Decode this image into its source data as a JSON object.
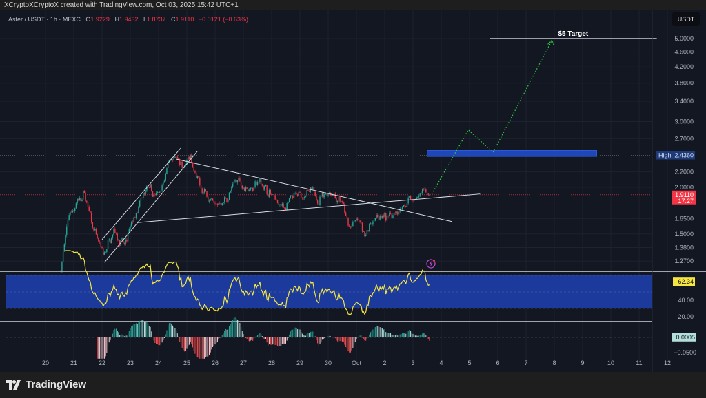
{
  "header": {
    "credit": "XCryptoXCryptoX created with TradingView.com, Oct 03, 2025 15:42 UTC+1"
  },
  "legend": {
    "symbol": "Aster / USDT · 1h · MEXC",
    "open_label": "O",
    "open": "1.9229",
    "high_label": "H",
    "high": "1.9432",
    "low_label": "L",
    "low": "1.8737",
    "close_label": "C",
    "close": "1.9110",
    "change": "−0.0121 (−0.63%)"
  },
  "price_axis": {
    "currency": "USDT",
    "ticks": [
      "5.0000",
      "4.6000",
      "4.2000",
      "3.8000",
      "3.4000",
      "3.0000",
      "2.7000",
      "2.2000",
      "2.0000",
      "1.6500",
      "1.5000",
      "1.3800",
      "1.2700"
    ],
    "high_label": "High",
    "high_value": "2.4360",
    "last_price": "1.9110",
    "countdown": "17:27"
  },
  "rsi_axis": {
    "ticks": [
      "40.00",
      "20.00"
    ],
    "current": "62.34"
  },
  "macd_axis": {
    "ticks": [
      "−0.0500"
    ],
    "current": "0.0005"
  },
  "time_axis": {
    "ticks": [
      "20",
      "21",
      "22",
      "23",
      "24",
      "25",
      "26",
      "27",
      "28",
      "29",
      "30",
      "Oct",
      "2",
      "3",
      "4",
      "5",
      "6",
      "7",
      "8",
      "9",
      "10",
      "11",
      "12"
    ]
  },
  "annotations": {
    "target_label": "$5 Target",
    "alert_icon": "lightning-icon"
  },
  "footer": {
    "brand": "TradingView"
  },
  "colors": {
    "background": "#131722",
    "up": "#26a69a",
    "down": "#f23645",
    "rsi_line": "#f5e642",
    "rsi_band": "#1c3a9c",
    "zone": "#1f47b8",
    "projection": "#2ecc40",
    "last_price": "#f23645",
    "high_badge": "#1e3a78"
  },
  "chart_data": {
    "type": "candlestick",
    "interval": "1h",
    "scale": "log",
    "ylim": [
      1.2,
      5.2
    ],
    "xlim": [
      "2025-09-19T12:00",
      "2025-10-12T12:00"
    ],
    "price_path": [
      [
        "2025-09-20T13:00",
        1.2
      ],
      [
        "2025-09-20T20:00",
        1.7
      ],
      [
        "2025-09-21T09:00",
        1.93
      ],
      [
        "2025-09-21T19:00",
        1.45
      ],
      [
        "2025-09-22T01:00",
        1.3
      ],
      [
        "2025-09-22T10:00",
        1.55
      ],
      [
        "2025-09-22T19:00",
        1.38
      ],
      [
        "2025-09-23T02:00",
        1.62
      ],
      [
        "2025-09-23T14:00",
        1.97
      ],
      [
        "2025-09-23T22:00",
        1.88
      ],
      [
        "2025-09-24T09:00",
        2.3
      ],
      [
        "2025-09-24T15:00",
        2.4
      ],
      [
        "2025-09-24T21:00",
        2.33
      ],
      [
        "2025-09-25T03:00",
        2.36
      ],
      [
        "2025-09-25T07:00",
        2.1
      ],
      [
        "2025-09-25T17:00",
        1.9
      ],
      [
        "2025-09-26T02:00",
        1.8
      ],
      [
        "2025-09-26T10:00",
        1.86
      ],
      [
        "2025-09-26T19:00",
        2.1
      ],
      [
        "2025-09-27T04:00",
        2.0
      ],
      [
        "2025-09-27T14:00",
        2.07
      ],
      [
        "2025-09-28T00:00",
        1.9
      ],
      [
        "2025-09-28T09:00",
        1.77
      ],
      [
        "2025-09-28T21:00",
        1.87
      ],
      [
        "2025-09-29T06:00",
        1.95
      ],
      [
        "2025-09-29T15:00",
        1.87
      ],
      [
        "2025-09-30T02:00",
        1.96
      ],
      [
        "2025-09-30T11:00",
        1.83
      ],
      [
        "2025-09-30T17:00",
        1.57
      ],
      [
        "2025-10-01T02:00",
        1.62
      ],
      [
        "2025-10-01T07:00",
        1.5
      ],
      [
        "2025-10-01T17:00",
        1.7
      ],
      [
        "2025-10-02T02:00",
        1.63
      ],
      [
        "2025-10-02T11:00",
        1.78
      ],
      [
        "2025-10-02T20:00",
        1.83
      ],
      [
        "2025-10-03T02:00",
        1.87
      ],
      [
        "2025-10-03T10:00",
        1.92
      ],
      [
        "2025-10-03T14:00",
        1.911
      ]
    ],
    "rsi": {
      "period": 14,
      "upper": 70,
      "lower": 30,
      "range": [
        0,
        100
      ],
      "last": 62.34
    },
    "macd_histogram": {
      "fast": 12,
      "slow": 26,
      "signal": 9,
      "last": 0.0005
    },
    "price_high_marker": 2.436,
    "drawings": {
      "target_line": {
        "price": 5.0,
        "from": "2025-10-05T17:00",
        "to": "2025-10-11T15:00"
      },
      "resistance_zone": {
        "low": 2.42,
        "high": 2.51,
        "from": "2025-10-03T12:00",
        "to": "2025-10-09T12:00"
      },
      "projection": [
        [
          "2025-10-03T16:00",
          1.92
        ],
        [
          "2025-10-04T23:00",
          2.85
        ],
        [
          "2025-10-05T20:00",
          2.48
        ],
        [
          "2025-10-07T22:00",
          4.95
        ]
      ],
      "channel_upper": [
        [
          "2025-09-22T00:00",
          1.45
        ],
        [
          "2025-09-24T19:00",
          2.55
        ]
      ],
      "channel_lower": [
        [
          "2025-09-22T02:00",
          1.26
        ],
        [
          "2025-09-25T09:00",
          2.5
        ]
      ],
      "descending_trendline": [
        [
          "2025-09-24T15:00",
          2.38
        ],
        [
          "2025-10-04T09:00",
          1.62
        ]
      ],
      "ascending_trendline": [
        [
          "2025-09-23T06:00",
          1.61
        ],
        [
          "2025-10-05T09:00",
          1.92
        ]
      ]
    }
  }
}
